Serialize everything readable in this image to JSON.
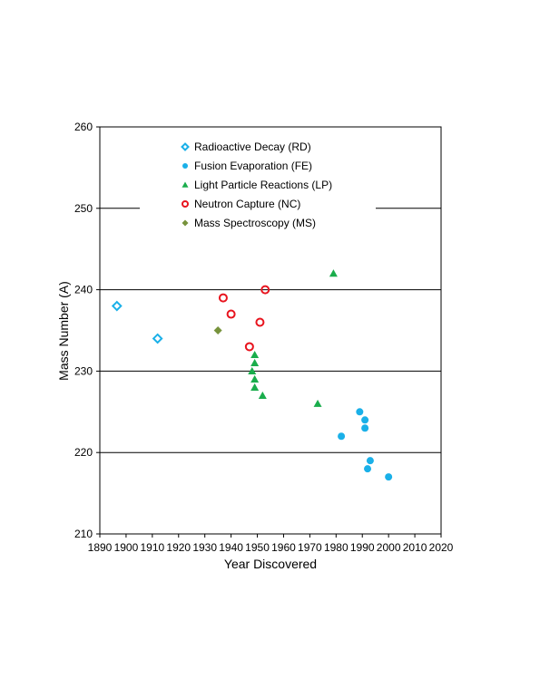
{
  "chart_data": {
    "type": "scatter",
    "title": "",
    "xlabel": "Year Discovered",
    "ylabel": "Mass Number (A)",
    "xlim": [
      1890,
      2020
    ],
    "ylim": [
      210,
      260
    ],
    "x_ticks": [
      "1890",
      "1900",
      "1910",
      "1920",
      "1930",
      "1940",
      "1950",
      "1960",
      "1970",
      "1980",
      "1990",
      "2000",
      "2010",
      "2020"
    ],
    "y_ticks": [
      "210",
      "220",
      "230",
      "240",
      "250",
      "260"
    ],
    "grid": "horizontal",
    "legend_position": "top",
    "series": [
      {
        "name": "Radioactive Decay (RD)",
        "marker": "diamond-open",
        "color": "#1ab0e8",
        "points": [
          [
            1896.5,
            238
          ],
          [
            1912,
            234
          ]
        ]
      },
      {
        "name": "Fusion Evaporation (FE)",
        "marker": "circle",
        "color": "#1ab0e8",
        "points": [
          [
            1982,
            222
          ],
          [
            1989,
            225
          ],
          [
            1991,
            224
          ],
          [
            1991,
            223
          ],
          [
            1992,
            218
          ],
          [
            1993,
            219
          ],
          [
            2000,
            217
          ]
        ]
      },
      {
        "name": "Light Particle Reactions (LP)",
        "marker": "triangle",
        "color": "#1aad4c",
        "points": [
          [
            1979,
            242
          ],
          [
            1949,
            232
          ],
          [
            1949,
            231
          ],
          [
            1948,
            230
          ],
          [
            1949,
            229
          ],
          [
            1949,
            228
          ],
          [
            1952,
            227
          ],
          [
            1973,
            226
          ]
        ]
      },
      {
        "name": "Neutron Capture (NC)",
        "marker": "circle-open",
        "color": "#e8141e",
        "points": [
          [
            1937,
            239
          ],
          [
            1940,
            237
          ],
          [
            1953,
            240
          ],
          [
            1951,
            236
          ],
          [
            1947,
            233
          ]
        ]
      },
      {
        "name": "Mass Spectroscopy (MS)",
        "marker": "diamond",
        "color": "#77933c",
        "points": [
          [
            1935,
            235
          ]
        ]
      }
    ]
  }
}
